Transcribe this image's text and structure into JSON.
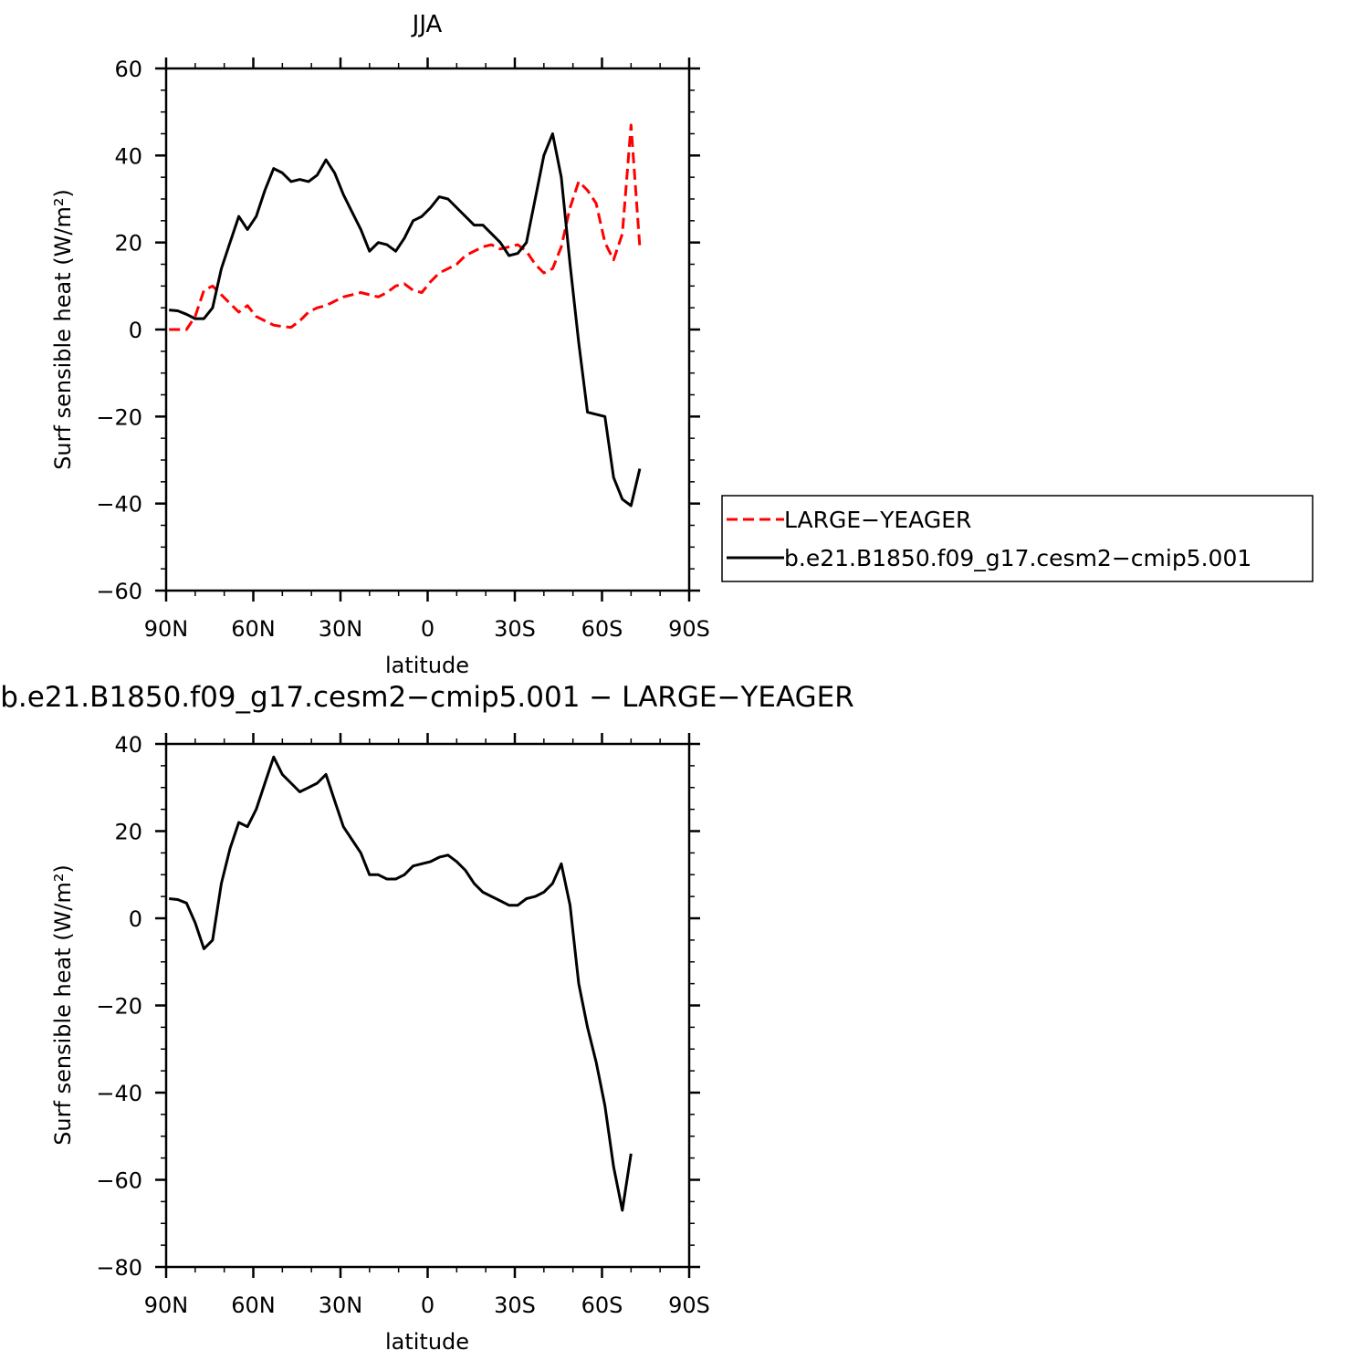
{
  "chart_data": [
    {
      "type": "line",
      "title": "JJA",
      "xlabel": "latitude",
      "ylabel": "Surf sensible heat (W/m²)",
      "xlim": [
        90,
        -90
      ],
      "ylim": [
        -60,
        60
      ],
      "xticks": [
        90,
        60,
        30,
        0,
        -30,
        -60,
        -90
      ],
      "xtick_labels": [
        "90N",
        "60N",
        "30N",
        "0",
        "30S",
        "60S",
        "90S"
      ],
      "yticks": [
        -60,
        -40,
        -20,
        0,
        20,
        40,
        60
      ],
      "ytick_labels": [
        "−60",
        "−40",
        "−20",
        "0",
        "20",
        "40",
        "60"
      ],
      "grid": false,
      "legend": "right",
      "series": [
        {
          "name": "LARGE−YEAGER",
          "color": "#ff0000",
          "style": "dashed",
          "x": [
            89,
            86,
            83,
            80,
            77,
            74,
            71,
            68,
            65,
            62,
            59,
            56,
            53,
            50,
            47,
            44,
            41,
            38,
            35,
            32,
            29,
            26,
            23,
            20,
            17,
            14,
            11,
            8,
            5,
            2,
            -1,
            -4,
            -7,
            -10,
            -13,
            -16,
            -19,
            -22,
            -25,
            -28,
            -31,
            -34,
            -37,
            -40,
            -43,
            -46,
            -49,
            -52,
            -55,
            -58,
            -61,
            -64,
            -67,
            -70,
            -73,
            -76,
            -78
          ],
          "y": [
            0,
            0,
            0,
            3,
            9,
            10,
            8,
            6,
            4,
            5.5,
            3,
            2,
            1,
            0.7,
            0.5,
            2,
            4,
            5,
            5.5,
            6.5,
            7.5,
            8,
            8.5,
            8,
            7.5,
            8.5,
            10,
            10.5,
            9,
            8.5,
            11,
            13,
            14,
            15,
            17,
            18,
            19,
            19.5,
            18.5,
            19,
            19.5,
            18,
            15,
            13,
            14,
            19,
            28,
            34,
            32,
            29,
            20,
            16,
            22,
            47,
            19,
            null,
            null
          ]
        },
        {
          "name": "b.e21.B1850.f09_g17.cesm2−cmip5.001",
          "color": "#000000",
          "style": "solid",
          "x": [
            89,
            86,
            83,
            80,
            77,
            74,
            71,
            68,
            65,
            62,
            59,
            56,
            53,
            50,
            47,
            44,
            41,
            38,
            35,
            32,
            29,
            26,
            23,
            20,
            17,
            14,
            11,
            8,
            5,
            2,
            -1,
            -4,
            -7,
            -10,
            -13,
            -16,
            -19,
            -22,
            -25,
            -28,
            -31,
            -34,
            -37,
            -40,
            -43,
            -46,
            -49,
            -52,
            -55,
            -58,
            -61,
            -64,
            -67,
            -70,
            -73,
            -76,
            -79,
            -82,
            -85,
            -88
          ],
          "y": [
            4.5,
            4.3,
            3.5,
            2.5,
            2.5,
            5,
            14,
            20,
            26,
            23,
            26,
            32,
            37,
            36,
            34,
            34.5,
            34,
            35.5,
            39,
            36,
            31,
            27,
            23,
            18,
            20,
            19.5,
            18,
            21,
            25,
            26,
            28,
            30.5,
            30,
            28,
            26,
            24,
            24,
            22,
            20,
            17,
            17.5,
            20,
            30,
            40,
            45,
            35,
            15,
            -3,
            -19,
            -19.5,
            -20,
            -34,
            -39,
            -40.5,
            -32,
            null,
            null,
            null,
            null,
            null
          ]
        }
      ]
    },
    {
      "type": "line",
      "title": "b.e21.B1850.f09_g17.cesm2−cmip5.001 − LARGE−YEAGER",
      "xlabel": "latitude",
      "ylabel": "Surf sensible heat (W/m²)",
      "xlim": [
        90,
        -90
      ],
      "ylim": [
        -80,
        40
      ],
      "xticks": [
        90,
        60,
        30,
        0,
        -30,
        -60,
        -90
      ],
      "xtick_labels": [
        "90N",
        "60N",
        "30N",
        "0",
        "30S",
        "60S",
        "90S"
      ],
      "yticks": [
        -80,
        -60,
        -40,
        -20,
        0,
        20,
        40
      ],
      "ytick_labels": [
        "−80",
        "−60",
        "−40",
        "−20",
        "0",
        "20",
        "40"
      ],
      "grid": false,
      "series": [
        {
          "color": "#000000",
          "style": "solid",
          "x": [
            89,
            86,
            83,
            80,
            77,
            74,
            71,
            68,
            65,
            62,
            59,
            56,
            53,
            50,
            47,
            44,
            41,
            38,
            35,
            32,
            29,
            26,
            23,
            20,
            17,
            14,
            11,
            8,
            5,
            2,
            -1,
            -4,
            -7,
            -10,
            -13,
            -16,
            -19,
            -22,
            -25,
            -28,
            -31,
            -34,
            -37,
            -40,
            -43,
            -46,
            -49,
            -52,
            -55,
            -58,
            -61,
            -64,
            -67,
            -70,
            -73,
            -76,
            -78
          ],
          "y": [
            4.5,
            4.3,
            3.5,
            -1,
            -7,
            -5,
            8,
            16,
            22,
            21,
            25,
            31,
            37,
            33,
            31,
            29,
            30,
            31,
            33,
            27,
            21,
            18,
            15,
            10,
            10,
            9,
            9,
            10,
            12,
            12.5,
            13,
            14,
            14.5,
            13,
            11,
            8,
            6,
            5,
            4,
            3,
            3,
            4.5,
            5,
            6,
            8,
            12.5,
            3,
            -15,
            -25,
            -33,
            -43,
            -57,
            -67,
            -54,
            null,
            null,
            null
          ]
        }
      ]
    }
  ]
}
